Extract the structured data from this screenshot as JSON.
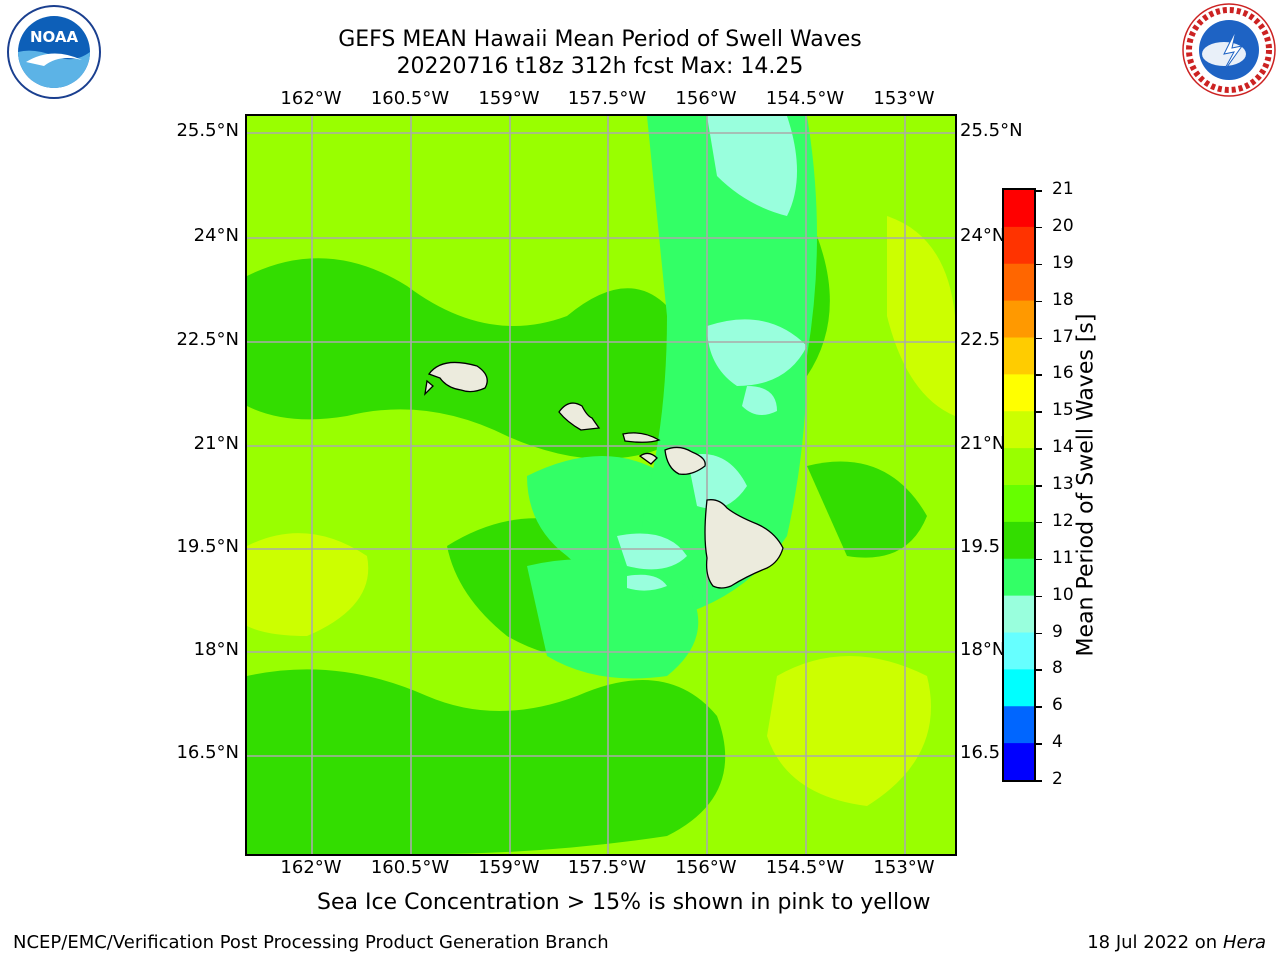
{
  "header": {
    "title_line1": "GEFS MEAN Hawaii Mean Period of Swell Waves",
    "title_line2": "20220716 t18z 312h fcst   Max: 14.25"
  },
  "logos": {
    "left": "noaa-logo",
    "right": "nws-logo"
  },
  "map": {
    "lon_ticks": [
      "162°W",
      "160.5°W",
      "159°W",
      "157.5°W",
      "156°W",
      "154.5°W",
      "153°W"
    ],
    "lat_ticks_left": [
      "25.5°N",
      "24°N",
      "22.5°N",
      "21°N",
      "19.5°N",
      "18°N",
      "16.5°N"
    ],
    "lat_ticks_right": [
      "25.5°N",
      "24°N",
      "22.5",
      "21°N",
      "19.5",
      "18°N",
      "16.5"
    ],
    "colors": {
      "lime": "#99ff00",
      "yellowgreen": "#ccff00",
      "green": "#33dd00",
      "mint": "#33ff66",
      "aqua": "#99ffdd",
      "land": "#ecebdd",
      "grid": "#aaaaaa"
    }
  },
  "colorbar": {
    "label": "Mean Period of Swell Waves [s]",
    "ticks": [
      "21",
      "20",
      "19",
      "18",
      "17",
      "16",
      "15",
      "14",
      "13",
      "12",
      "11",
      "10",
      "9",
      "8",
      "6",
      "4",
      "2"
    ],
    "colors": [
      "#ff0000",
      "#ff3300",
      "#ff6600",
      "#ff9900",
      "#ffcc00",
      "#ffff00",
      "#ccff00",
      "#99ff00",
      "#66ff00",
      "#33dd00",
      "#33ff66",
      "#99ffdd",
      "#66ffff",
      "#00ffff",
      "#0066ff",
      "#0000ff"
    ]
  },
  "caption": "Sea Ice Concentration > 15% is shown in pink to yellow",
  "footer": {
    "left": "NCEP/EMC/Verification Post Processing Product Generation Branch",
    "right_prefix": "18 Jul 2022 on ",
    "right_host": "Hera"
  }
}
